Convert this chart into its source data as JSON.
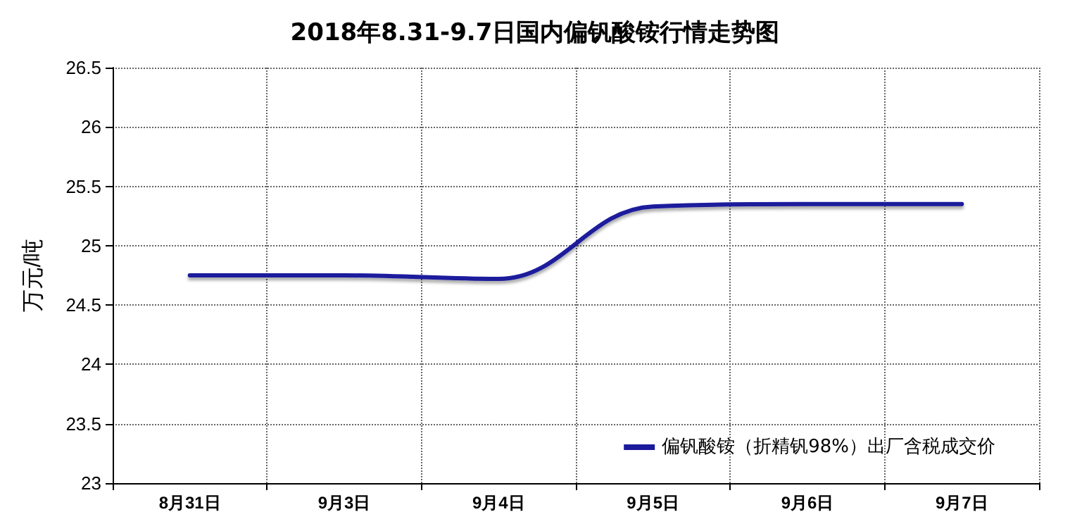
{
  "chart_data": {
    "type": "line",
    "title": "2018年8.31-9.7日国内偏钒酸铵行情走势图",
    "ylabel": "万元/吨",
    "categories": [
      "8月31日",
      "9月3日",
      "9月4日",
      "9月5日",
      "9月6日",
      "9月7日"
    ],
    "series": [
      {
        "name": "偏钒酸铵（折精钒98%）出厂含税成交价",
        "color": "#1a1a9c",
        "values": [
          24.75,
          24.75,
          24.72,
          25.33,
          25.35,
          25.35
        ]
      }
    ],
    "ylim": [
      23,
      26.5
    ],
    "yticks": [
      23,
      23.5,
      24,
      24.5,
      25,
      25.5,
      26,
      26.5
    ],
    "grid": true,
    "legend": "bottom right",
    "marker": "none",
    "line_style": "solid"
  }
}
